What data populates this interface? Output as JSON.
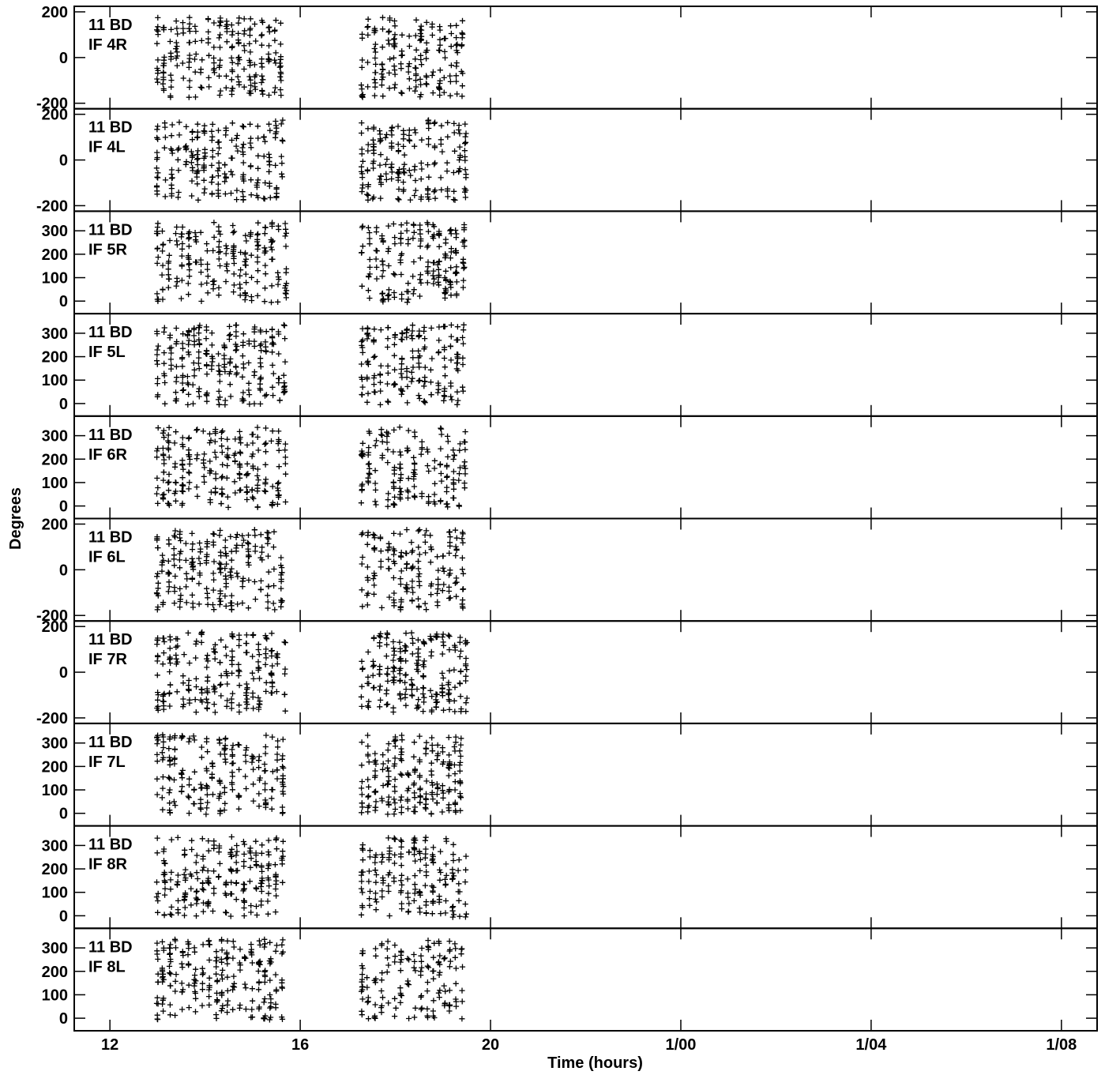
{
  "chart_data": {
    "type": "scatter",
    "marker": "+",
    "xlabel": "Time (hours)",
    "ylabel": "Degrees",
    "x_ticks": [
      "12",
      "16",
      "20",
      "1/00",
      "1/04",
      "1/08"
    ],
    "x_tick_hours": [
      12,
      16,
      20,
      24,
      28,
      32
    ],
    "xlim_hours": [
      11.25,
      32.75
    ],
    "panels": [
      {
        "label1": "11 BD",
        "label2": "IF 4R",
        "ylim": [
          -200,
          200
        ],
        "yticks": [
          -200,
          0,
          200
        ],
        "ytick_labels": [
          "-200",
          "0",
          "200"
        ]
      },
      {
        "label1": "11 BD",
        "label2": "IF 4L",
        "ylim": [
          -200,
          200
        ],
        "yticks": [
          -200,
          0,
          200
        ],
        "ytick_labels": [
          "-200",
          "0",
          "200"
        ]
      },
      {
        "label1": "11 BD",
        "label2": "IF 5R",
        "ylim": [
          -30,
          360
        ],
        "yticks": [
          0,
          100,
          200,
          300
        ],
        "ytick_labels": [
          "0",
          "100",
          "200",
          "300"
        ]
      },
      {
        "label1": "11 BD",
        "label2": "IF 5L",
        "ylim": [
          -30,
          360
        ],
        "yticks": [
          0,
          100,
          200,
          300
        ],
        "ytick_labels": [
          "0",
          "100",
          "200",
          "300"
        ]
      },
      {
        "label1": "11 BD",
        "label2": "IF 6R",
        "ylim": [
          -30,
          360
        ],
        "yticks": [
          0,
          100,
          200,
          300
        ],
        "ytick_labels": [
          "0",
          "100",
          "200",
          "300"
        ]
      },
      {
        "label1": "11 BD",
        "label2": "IF 6L",
        "ylim": [
          -200,
          200
        ],
        "yticks": [
          -200,
          0,
          200
        ],
        "ytick_labels": [
          "-200",
          "0",
          "200"
        ]
      },
      {
        "label1": "11 BD",
        "label2": "IF 7R",
        "ylim": [
          -200,
          200
        ],
        "yticks": [
          -200,
          0,
          200
        ],
        "ytick_labels": [
          "-200",
          "0",
          "200"
        ]
      },
      {
        "label1": "11 BD",
        "label2": "IF 7L",
        "ylim": [
          -30,
          360
        ],
        "yticks": [
          0,
          100,
          200,
          300
        ],
        "ytick_labels": [
          "0",
          "100",
          "200",
          "300"
        ]
      },
      {
        "label1": "11 BD",
        "label2": "IF 8R",
        "ylim": [
          -30,
          360
        ],
        "yticks": [
          0,
          100,
          200,
          300
        ],
        "ytick_labels": [
          "0",
          "100",
          "200",
          "300"
        ]
      },
      {
        "label1": "11 BD",
        "label2": "IF 8L",
        "ylim": [
          -30,
          360
        ],
        "yticks": [
          0,
          100,
          200,
          300
        ],
        "ytick_labels": [
          "0",
          "100",
          "200",
          "300"
        ]
      }
    ],
    "data_time_ranges_hours": [
      [
        13.0,
        15.7
      ],
      [
        17.3,
        19.5
      ]
    ],
    "grid": false
  }
}
